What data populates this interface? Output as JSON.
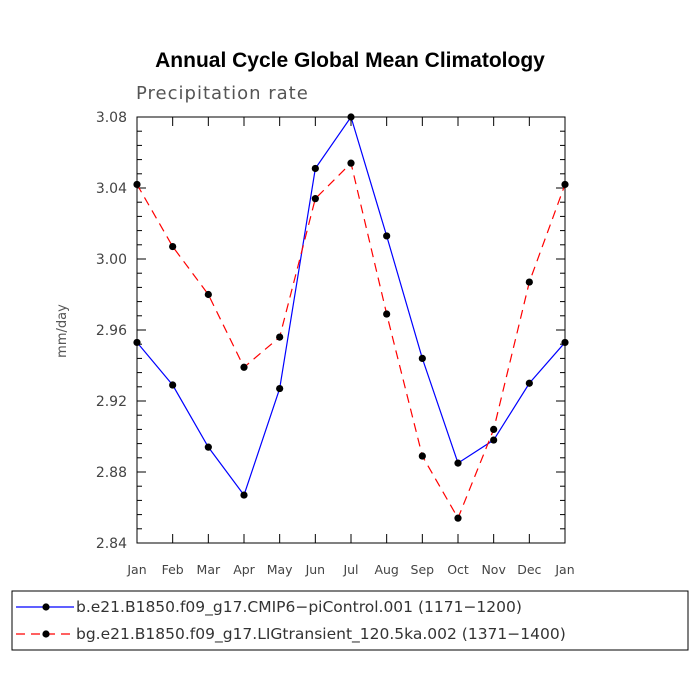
{
  "chart_data": {
    "type": "line",
    "title": "Annual Cycle Global Mean Climatology",
    "subtitle": "Precipitation rate",
    "ylabel": "mm/day",
    "xlabel": "",
    "categories": [
      "Jan",
      "Feb",
      "Mar",
      "Apr",
      "May",
      "Jun",
      "Jul",
      "Aug",
      "Sep",
      "Oct",
      "Nov",
      "Dec",
      "Jan"
    ],
    "ylim": [
      2.84,
      3.08
    ],
    "yticks": [
      2.84,
      2.88,
      2.92,
      2.96,
      3.0,
      3.04,
      3.08
    ],
    "ytick_labels": [
      "2.84",
      "2.88",
      "2.92",
      "2.96",
      "3.00",
      "3.04",
      "3.08"
    ],
    "yminor_step": 0.008,
    "series": [
      {
        "name": "b.e21.B1850.f09_g17.CMIP6−piControl.001 (1171−1200)",
        "color": "#0000ff",
        "dash": "solid",
        "values": [
          2.953,
          2.929,
          2.894,
          2.867,
          2.927,
          3.051,
          3.08,
          3.013,
          2.944,
          2.885,
          2.898,
          2.93,
          2.953
        ]
      },
      {
        "name": "bg.e21.B1850.f09_g17.LIGtransient_120.5ka.002 (1371−1400)",
        "color": "#ff0000",
        "dash": "dashed",
        "values": [
          3.042,
          3.007,
          2.98,
          2.939,
          2.956,
          3.034,
          3.054,
          2.969,
          2.889,
          2.854,
          2.904,
          2.987,
          3.042
        ]
      }
    ],
    "legend_position": "bottom"
  }
}
